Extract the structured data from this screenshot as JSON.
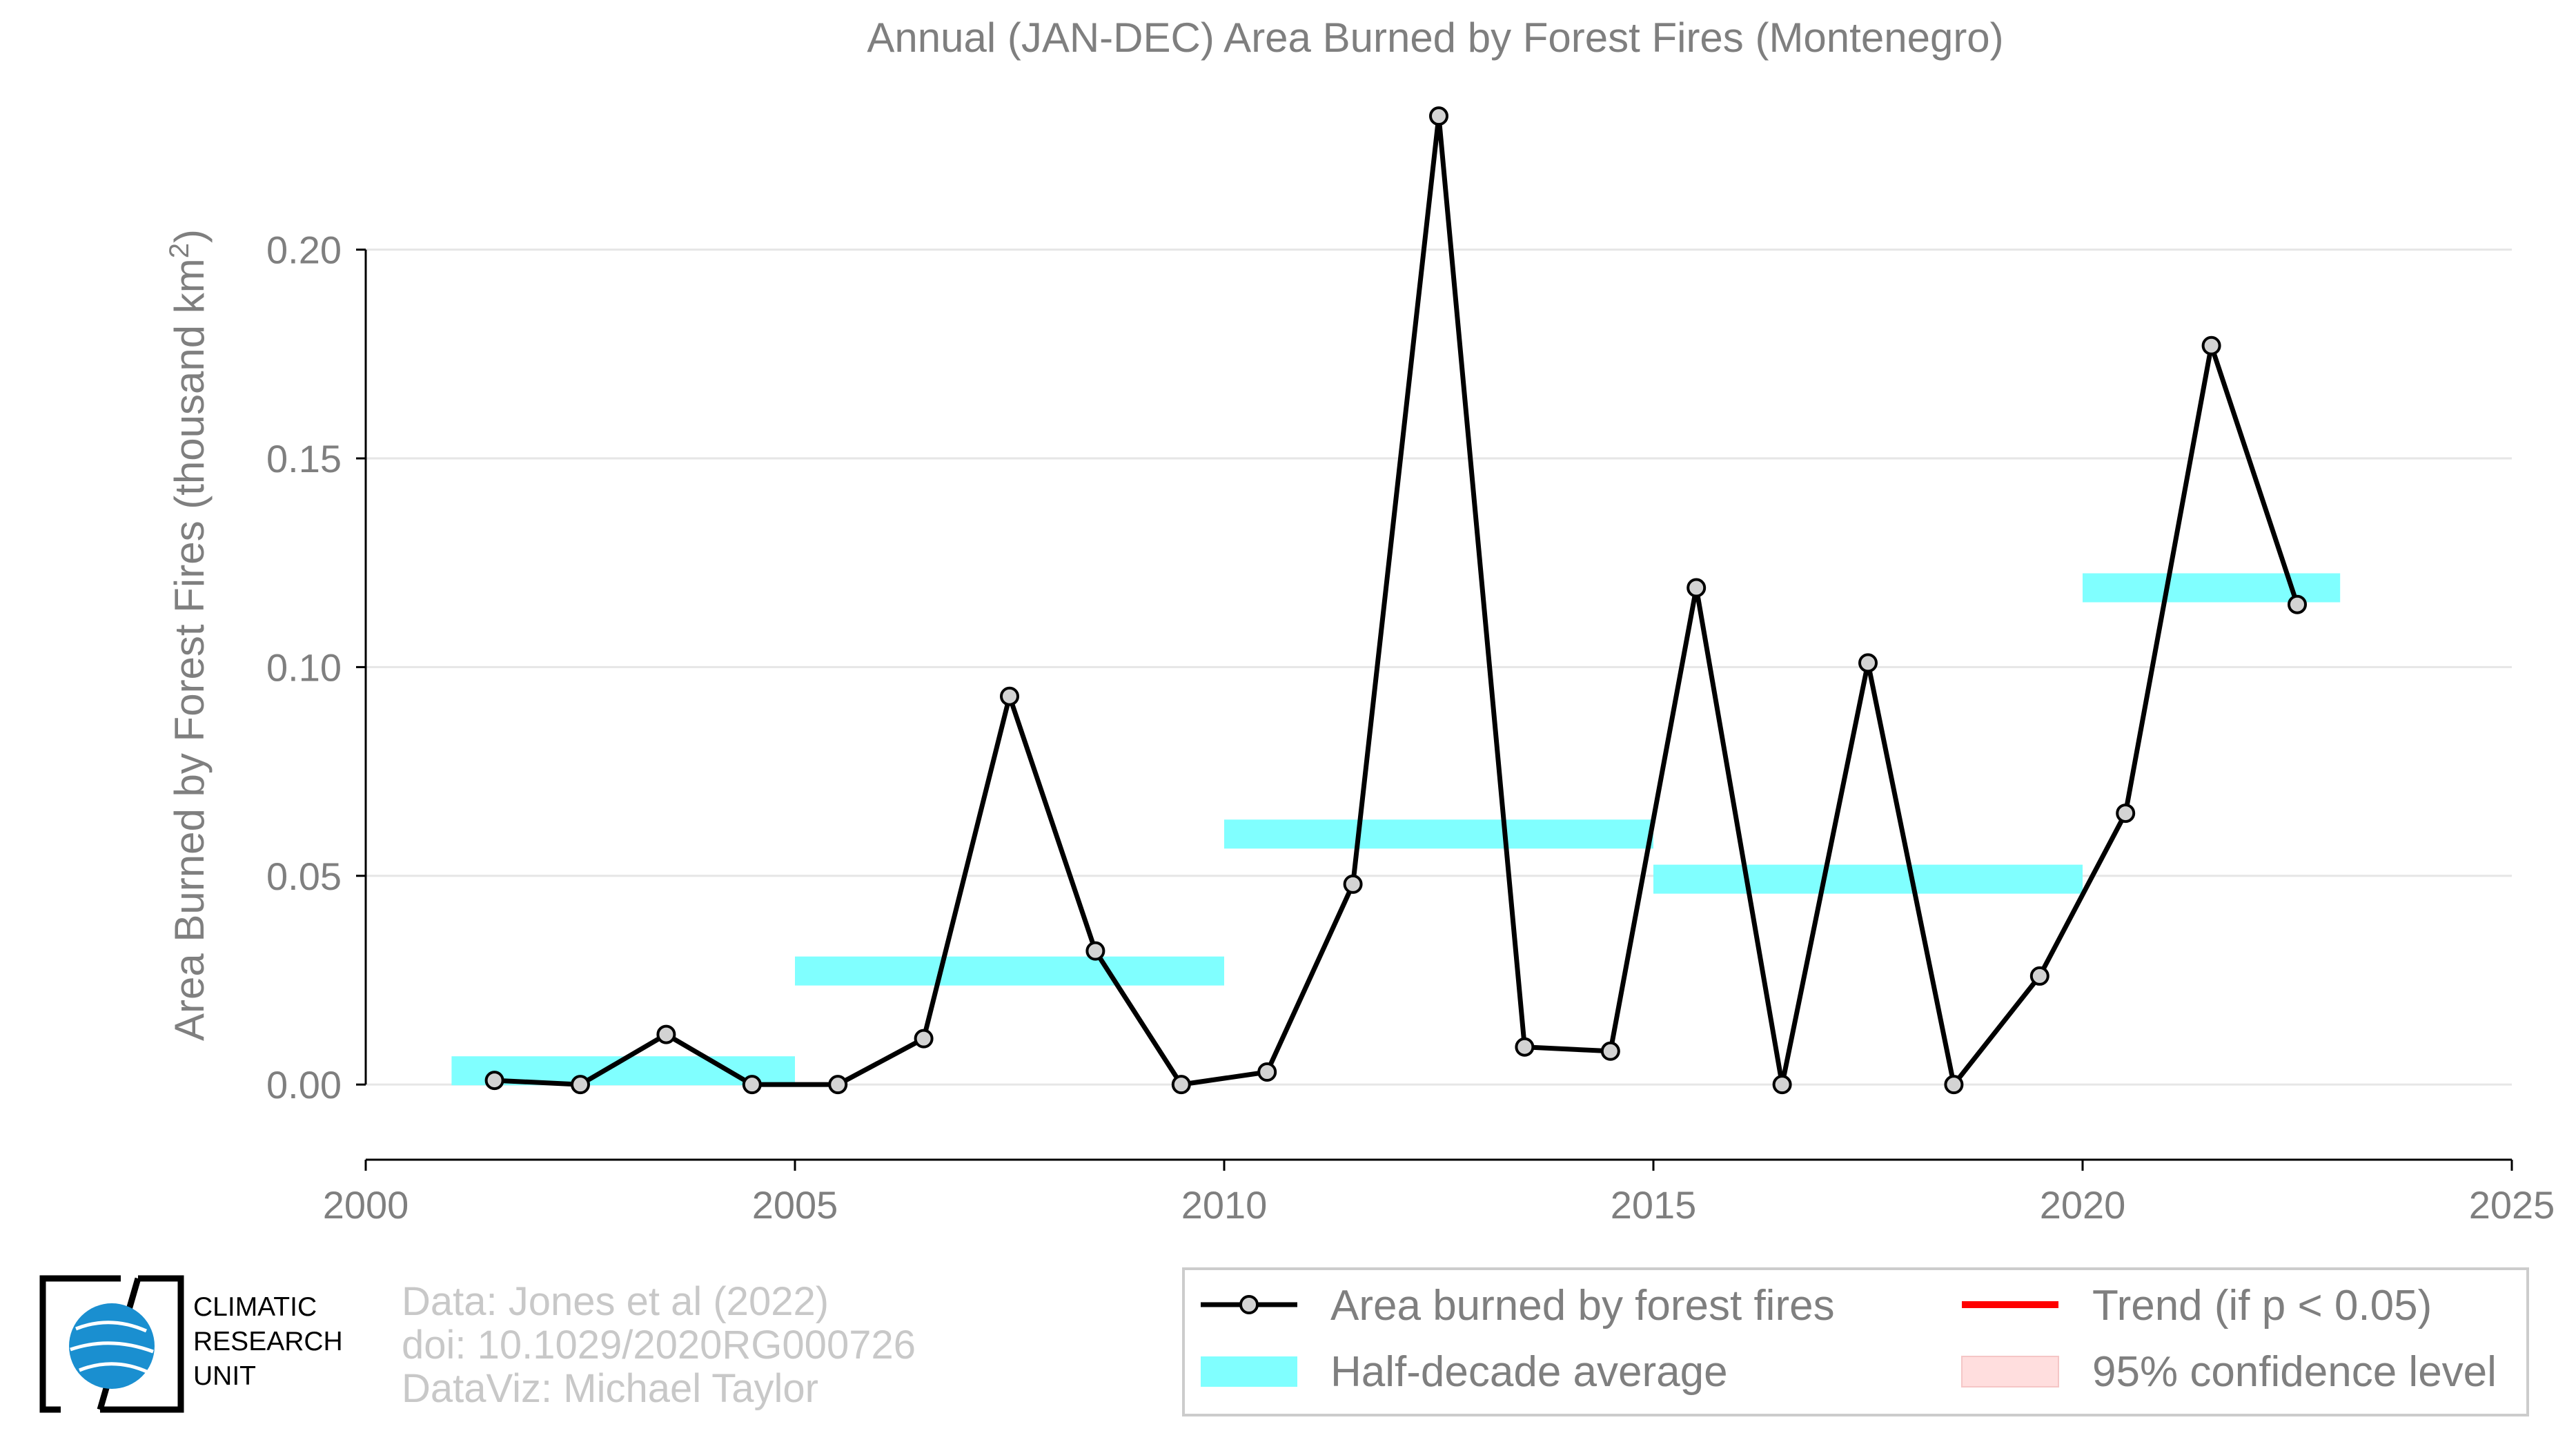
{
  "chart_data": {
    "type": "line",
    "title": "Annual (JAN-DEC) Area Burned by Forest Fires (Montenegro)",
    "ylabel": "Area Burned by Forest Fires (thousand km",
    "ylabel_sup": "2",
    "ylabel_close": ")",
    "xlim": [
      2000,
      2025
    ],
    "ylim": [
      -0.018,
      0.235
    ],
    "xticks": [
      2000,
      2005,
      2010,
      2015,
      2020,
      2025
    ],
    "yticks": [
      0.0,
      0.05,
      0.1,
      0.15,
      0.2
    ],
    "ytick_labels": [
      "0.00",
      "0.05",
      "0.10",
      "0.15",
      "0.20"
    ],
    "grid": "horizontal",
    "series": [
      {
        "name": "Area burned by forest fires",
        "color": "#000000",
        "marker_color": "#d3d3d3",
        "x": [
          2001.5,
          2002.5,
          2003.5,
          2004.5,
          2005.5,
          2006.5,
          2007.5,
          2008.5,
          2009.5,
          2010.5,
          2011.5,
          2012.5,
          2013.5,
          2014.5,
          2015.5,
          2016.5,
          2017.5,
          2018.5,
          2019.5,
          2020.5,
          2021.5,
          2022.5
        ],
        "values": [
          0.001,
          0.0,
          0.012,
          0.0,
          0.0,
          0.011,
          0.093,
          0.032,
          0.0,
          0.003,
          0.048,
          0.232,
          0.009,
          0.008,
          0.119,
          0.0,
          0.101,
          0.0,
          0.026,
          0.065,
          0.177,
          0.115
        ]
      }
    ],
    "half_decade_average": {
      "name": "Half-decade average",
      "color": "#80ffff",
      "segments": [
        {
          "x0": 2001,
          "x1": 2005,
          "value": 0.0033
        },
        {
          "x0": 2005,
          "x1": 2010,
          "value": 0.0272
        },
        {
          "x0": 2010,
          "x1": 2015,
          "value": 0.06
        },
        {
          "x0": 2015,
          "x1": 2020,
          "value": 0.0492
        },
        {
          "x0": 2020,
          "x1": 2023,
          "value": 0.119
        }
      ]
    },
    "legend": {
      "placement": "bottom-right",
      "entries": [
        {
          "label": "Area burned by forest fires",
          "kind": "line-marker",
          "color": "#000000"
        },
        {
          "label": "Trend (if p < 0.05)",
          "kind": "line",
          "color": "#ff0000"
        },
        {
          "label": "Half-decade average",
          "kind": "patch",
          "color": "#80ffff"
        },
        {
          "label": "95% confidence level",
          "kind": "patch",
          "color": "#ffdede"
        }
      ]
    }
  },
  "credits": {
    "line1": "Data: Jones et al (2022)",
    "line2": "doi: 10.1029/2020RG000726",
    "line3": "DataViz: Michael Taylor"
  },
  "logo": {
    "line1": "CLIMATIC",
    "line2": "RESEARCH",
    "line3": "UNIT",
    "icon": "globe-icon",
    "globe_color": "#1a8fd0"
  }
}
